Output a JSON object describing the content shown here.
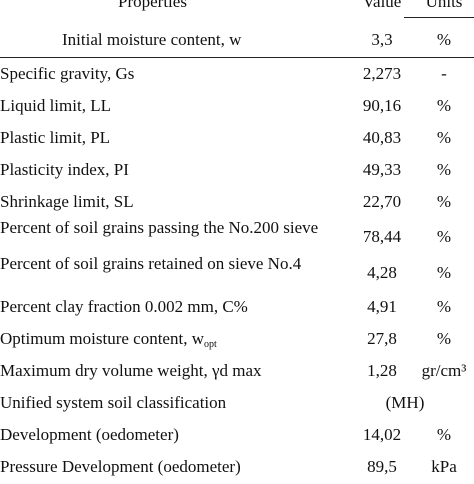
{
  "header": {
    "properties": "Properties",
    "value": "Value",
    "units": "Units"
  },
  "rows": [
    {
      "property": "Initial moisture content, w",
      "value": "3,3",
      "unit": "%"
    },
    {
      "property": "Specific gravity, Gs",
      "value": "2,273",
      "unit": "-"
    },
    {
      "property": "Liquid limit, LL",
      "value": "90,16",
      "unit": "%"
    },
    {
      "property": "Plastic limit, PL",
      "value": "40,83",
      "unit": "%"
    },
    {
      "property": "Plasticity index, PI",
      "value": "49,33",
      "unit": "%"
    },
    {
      "property": "Shrinkage limit, SL",
      "value": "22,70",
      "unit": "%"
    },
    {
      "property": "Percent of soil grains passing the No.200 sieve",
      "value": "78,44",
      "unit": "%"
    },
    {
      "property": "Percent of soil grains retained on sieve No.4",
      "value": "4,28",
      "unit": "%"
    },
    {
      "property": "Percent clay fraction 0.002 mm, C%",
      "value": "4,91",
      "unit": "%"
    },
    {
      "property_main": "Optimum moisture content, w",
      "property_sub": "opt",
      "value": "27,8",
      "unit": "%"
    },
    {
      "property": "Maximum dry volume weight, γd max",
      "value": "1,28",
      "unit": "gr/cm³"
    },
    {
      "property": "Unified system soil classification",
      "value_unit": "(MH)"
    },
    {
      "property": "Development (oedometer)",
      "value": "14,02",
      "unit": "%"
    },
    {
      "property": "Pressure Development (oedometer)",
      "value": "89,5",
      "unit": "kPa"
    }
  ]
}
